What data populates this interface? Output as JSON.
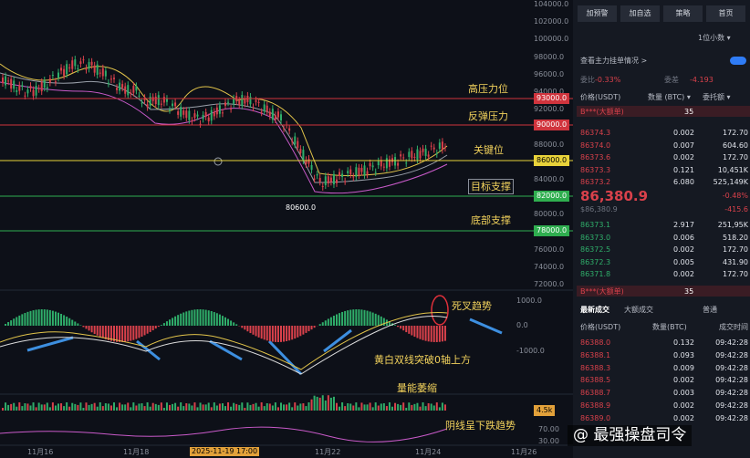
{
  "chart": {
    "price_axis": [
      "104000.0",
      "102000.0",
      "100000.0",
      "98000.0",
      "96000.0",
      "94000.0",
      "92000.0",
      "90000.0",
      "88000.0",
      "86000.0",
      "84000.0",
      "82000.0",
      "80000.0",
      "78000.0",
      "76000.0",
      "74000.0",
      "72000.0"
    ],
    "levels": [
      {
        "price": "93000.0",
        "text": "高压力位",
        "color": "#d0343d"
      },
      {
        "price": "90000.0",
        "text": "反弹压力",
        "color": "#d0343d"
      },
      {
        "price": "86000.0",
        "text": "关键位",
        "color": "#e8d23a"
      },
      {
        "price": "82000.0",
        "text": "目标支撑",
        "color": "#2fae4f"
      },
      {
        "price": "78000.0",
        "text": "底部支撑",
        "color": "#2fae4f"
      }
    ],
    "low_label": "80600.0",
    "macd_axis": [
      "1000.0",
      "0.0",
      "-1000.0"
    ],
    "annotations": [
      "死叉趋势",
      "黄白双线突破0轴上方",
      "量能萎缩",
      "阴线呈下跌趋势"
    ],
    "volume_label": "4.5k",
    "rsi_axis": [
      "70.00",
      "30.00"
    ],
    "x_axis": [
      "11月16",
      "11月18",
      "2025-11-19 17:00",
      "11月22",
      "11月24",
      "11月26"
    ]
  },
  "panel": {
    "buttons": [
      "加预警",
      "加自选",
      "策略",
      "首页"
    ],
    "precision": "1位小数 ▾",
    "main_orders": "查看主力挂单情况 >",
    "ratio_label": "委比",
    "ratio": "-0.33%",
    "diff_label": "委差",
    "diff": "-4.193",
    "headers": [
      "价格(USDT)",
      "数量 (BTC) ▾",
      "委托额 ▾"
    ],
    "big_order": "B***(大额单)",
    "big_order_count": "35",
    "asks": [
      [
        "86374.3",
        "0.002",
        "172.70"
      ],
      [
        "86374.0",
        "0.007",
        "604.60"
      ],
      [
        "86373.6",
        "0.002",
        "172.70"
      ],
      [
        "86373.3",
        "0.121",
        "10,451K"
      ],
      [
        "86373.2",
        "6.080",
        "525,149K"
      ]
    ],
    "last_price": "86,380.9",
    "change_pct": "-0.48%",
    "usd_price": "$86,380.9",
    "change": "-415.6",
    "bids": [
      [
        "86373.1",
        "2.917",
        "251,95K"
      ],
      [
        "86373.0",
        "0.006",
        "518.20"
      ],
      [
        "86372.5",
        "0.002",
        "172.70"
      ],
      [
        "86372.3",
        "0.005",
        "431.90"
      ],
      [
        "86371.8",
        "0.002",
        "172.70"
      ]
    ],
    "tabs": [
      "最新成交",
      "大额成交",
      "普通"
    ],
    "trade_headers": [
      "价格(USDT)",
      "数量(BTC)",
      "成交时间"
    ],
    "trades": [
      [
        "86388.0",
        "0.132",
        "09:42:28"
      ],
      [
        "86388.1",
        "0.093",
        "09:42:28"
      ],
      [
        "86388.3",
        "0.009",
        "09:42:28"
      ],
      [
        "86388.5",
        "0.002",
        "09:42:28"
      ],
      [
        "86388.7",
        "0.003",
        "09:42:28"
      ],
      [
        "86388.9",
        "0.002",
        "09:42:28"
      ],
      [
        "86389.0",
        "0.002",
        "09:42:28"
      ]
    ]
  },
  "watermark": "@ 最强操盘司令"
}
